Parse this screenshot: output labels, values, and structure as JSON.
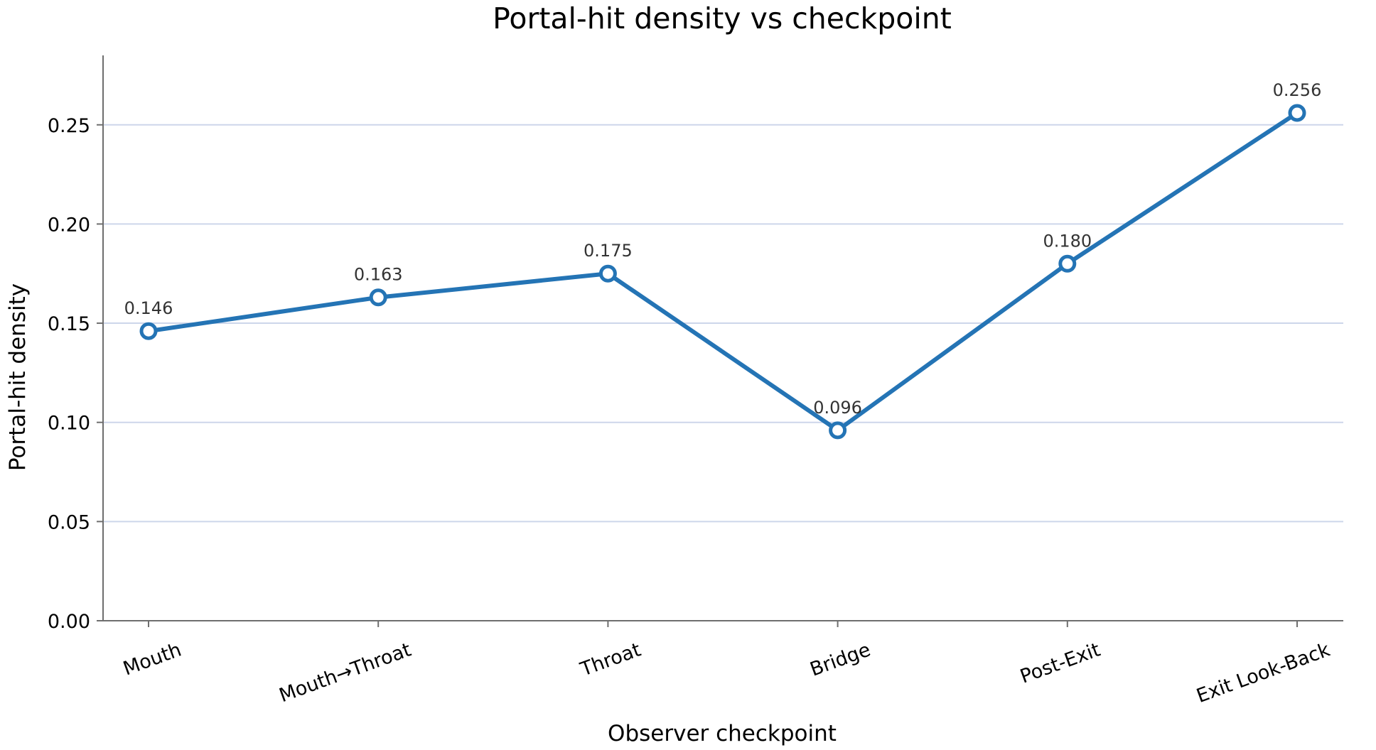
{
  "chart_data": {
    "type": "line",
    "title": "Portal-hit density vs checkpoint",
    "xlabel": "Observer checkpoint",
    "ylabel": "Portal-hit density",
    "categories": [
      "Mouth",
      "Mouth→Throat",
      "Throat",
      "Bridge",
      "Post-Exit",
      "Exit Look-Back"
    ],
    "series": [
      {
        "values": [
          0.146,
          0.163,
          0.175,
          0.096,
          0.18,
          0.256
        ],
        "value_labels": [
          "0.146",
          "0.163",
          "0.175",
          "0.096",
          "0.180",
          "0.256"
        ]
      }
    ],
    "ylim": [
      0,
      0.285
    ],
    "yticks": [
      0.0,
      0.05,
      0.1,
      0.15,
      0.2,
      0.25
    ],
    "ytick_labels": [
      "0.00",
      "0.05",
      "0.10",
      "0.15",
      "0.20",
      "0.25"
    ],
    "grid": "horizontal",
    "legend": "none",
    "colors": {
      "line": "#2474b5",
      "marker_fill": "#ffffff",
      "grid": "#cdd6ea",
      "axis": "#6e6e6e"
    }
  }
}
